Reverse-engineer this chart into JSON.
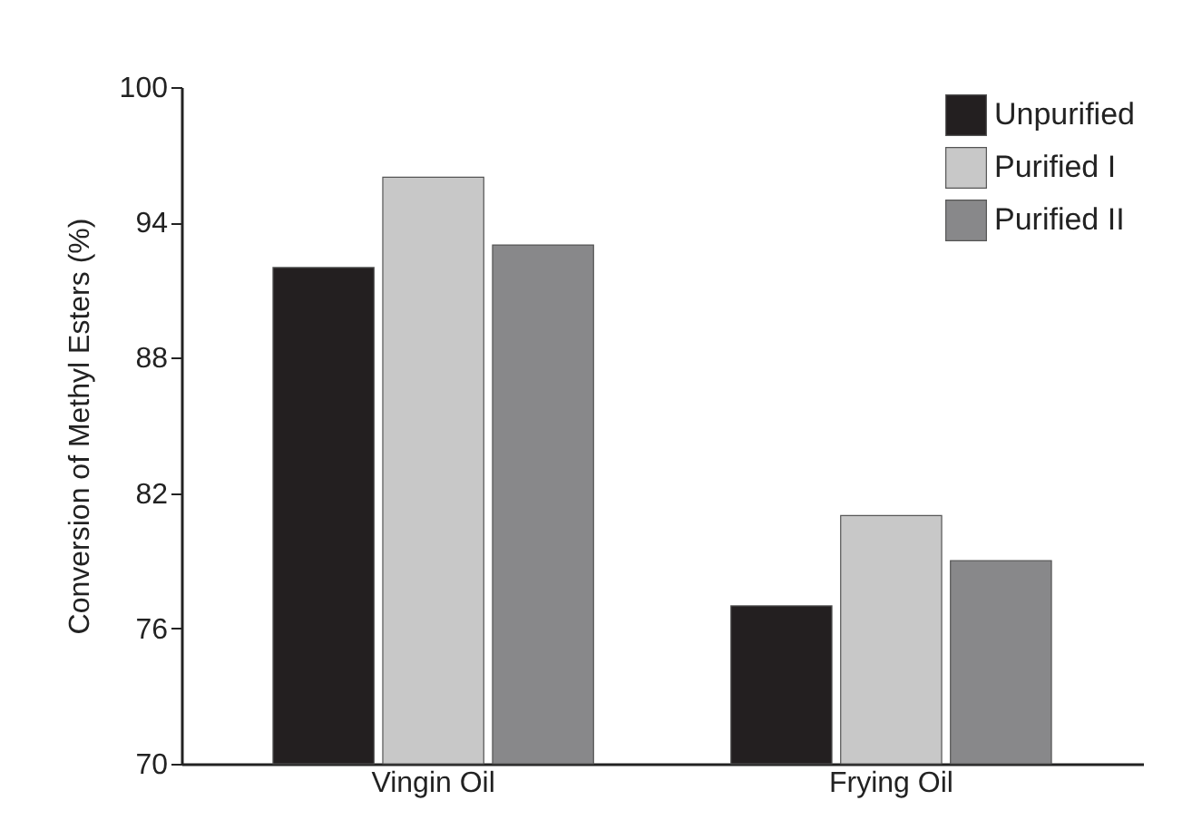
{
  "chart_data": {
    "type": "bar",
    "ylabel": "Conversion of Methyl Esters (%)",
    "categories": [
      "Vingin Oil",
      "Frying Oil"
    ],
    "series": [
      {
        "name": "Unpurified",
        "color": "#231f20",
        "values": [
          92,
          77
        ]
      },
      {
        "name": "Purified I",
        "color": "#c8c8c8",
        "values": [
          96,
          81
        ]
      },
      {
        "name": "Purified II",
        "color": "#88888a",
        "values": [
          93,
          79
        ]
      }
    ],
    "ylim": [
      70,
      100
    ],
    "yticks": [
      70,
      76,
      82,
      88,
      94,
      100
    ],
    "grid": false,
    "legend": "top right"
  }
}
